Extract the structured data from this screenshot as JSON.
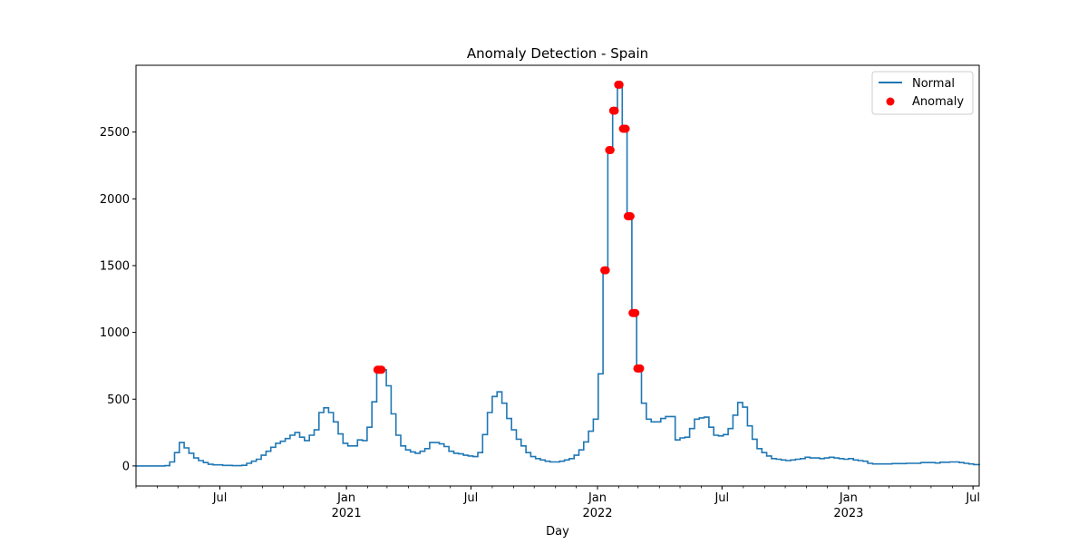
{
  "chart_data": {
    "type": "line",
    "title": "Anomaly Detection - Spain",
    "xlabel": "Day",
    "ylabel": "",
    "xlim": [
      "2020-03-01",
      "2023-07-10"
    ],
    "ylim": [
      -150,
      3000
    ],
    "grid": false,
    "legend_position": "top-right",
    "y_ticks": [
      0,
      500,
      1000,
      1500,
      2000,
      2500
    ],
    "x_ticks": [
      {
        "date": "2020-07-01",
        "label": "Jul",
        "sublabel": ""
      },
      {
        "date": "2021-01-01",
        "label": "Jan",
        "sublabel": "2021"
      },
      {
        "date": "2021-07-01",
        "label": "Jul",
        "sublabel": ""
      },
      {
        "date": "2022-01-01",
        "label": "Jan",
        "sublabel": "2022"
      },
      {
        "date": "2022-07-01",
        "label": "Jul",
        "sublabel": ""
      },
      {
        "date": "2023-01-01",
        "label": "Jan",
        "sublabel": "2023"
      },
      {
        "date": "2023-07-01",
        "label": "Jul",
        "sublabel": ""
      }
    ],
    "series": [
      {
        "name": "Normal",
        "type": "step-line",
        "color": "#1f77b4",
        "points": [
          [
            "2020-03-01",
            0
          ],
          [
            "2020-04-12",
            2
          ],
          [
            "2020-04-19",
            30
          ],
          [
            "2020-04-26",
            100
          ],
          [
            "2020-05-03",
            175
          ],
          [
            "2020-05-10",
            135
          ],
          [
            "2020-05-17",
            95
          ],
          [
            "2020-05-24",
            60
          ],
          [
            "2020-05-31",
            40
          ],
          [
            "2020-06-07",
            25
          ],
          [
            "2020-06-14",
            12
          ],
          [
            "2020-06-21",
            8
          ],
          [
            "2020-07-05",
            4
          ],
          [
            "2020-07-19",
            2
          ],
          [
            "2020-08-02",
            5
          ],
          [
            "2020-08-09",
            20
          ],
          [
            "2020-08-16",
            35
          ],
          [
            "2020-08-23",
            50
          ],
          [
            "2020-08-30",
            80
          ],
          [
            "2020-09-06",
            110
          ],
          [
            "2020-09-13",
            140
          ],
          [
            "2020-09-20",
            170
          ],
          [
            "2020-09-27",
            185
          ],
          [
            "2020-10-04",
            205
          ],
          [
            "2020-10-11",
            230
          ],
          [
            "2020-10-18",
            250
          ],
          [
            "2020-10-25",
            215
          ],
          [
            "2020-11-01",
            190
          ],
          [
            "2020-11-08",
            230
          ],
          [
            "2020-11-15",
            270
          ],
          [
            "2020-11-22",
            400
          ],
          [
            "2020-11-29",
            435
          ],
          [
            "2020-12-06",
            400
          ],
          [
            "2020-12-13",
            330
          ],
          [
            "2020-12-20",
            240
          ],
          [
            "2020-12-27",
            170
          ],
          [
            "2021-01-03",
            150
          ],
          [
            "2021-01-17",
            195
          ],
          [
            "2021-01-24",
            190
          ],
          [
            "2021-01-31",
            290
          ],
          [
            "2021-02-07",
            480
          ],
          [
            "2021-02-14",
            700
          ],
          [
            "2021-02-21",
            720
          ],
          [
            "2021-02-28",
            600
          ],
          [
            "2021-03-07",
            390
          ],
          [
            "2021-03-14",
            230
          ],
          [
            "2021-03-21",
            150
          ],
          [
            "2021-03-28",
            120
          ],
          [
            "2021-04-04",
            105
          ],
          [
            "2021-04-11",
            95
          ],
          [
            "2021-04-18",
            110
          ],
          [
            "2021-04-25",
            130
          ],
          [
            "2021-05-02",
            175
          ],
          [
            "2021-05-16",
            165
          ],
          [
            "2021-05-23",
            145
          ],
          [
            "2021-05-30",
            110
          ],
          [
            "2021-06-06",
            95
          ],
          [
            "2021-06-13",
            90
          ],
          [
            "2021-06-20",
            80
          ],
          [
            "2021-06-27",
            75
          ],
          [
            "2021-07-04",
            70
          ],
          [
            "2021-07-11",
            100
          ],
          [
            "2021-07-18",
            235
          ],
          [
            "2021-07-25",
            400
          ],
          [
            "2021-08-01",
            520
          ],
          [
            "2021-08-08",
            555
          ],
          [
            "2021-08-15",
            470
          ],
          [
            "2021-08-22",
            355
          ],
          [
            "2021-08-29",
            270
          ],
          [
            "2021-09-05",
            200
          ],
          [
            "2021-09-12",
            150
          ],
          [
            "2021-09-19",
            100
          ],
          [
            "2021-09-26",
            70
          ],
          [
            "2021-10-03",
            55
          ],
          [
            "2021-10-10",
            45
          ],
          [
            "2021-10-17",
            35
          ],
          [
            "2021-10-24",
            30
          ],
          [
            "2021-10-31",
            30
          ],
          [
            "2021-11-07",
            35
          ],
          [
            "2021-11-14",
            45
          ],
          [
            "2021-11-21",
            55
          ],
          [
            "2021-11-28",
            80
          ],
          [
            "2021-12-05",
            120
          ],
          [
            "2021-12-12",
            180
          ],
          [
            "2021-12-19",
            260
          ],
          [
            "2021-12-26",
            350
          ],
          [
            "2022-01-02",
            690
          ],
          [
            "2022-01-09",
            1465
          ],
          [
            "2022-01-16",
            2365
          ],
          [
            "2022-01-23",
            2660
          ],
          [
            "2022-01-30",
            2855
          ],
          [
            "2022-02-06",
            2525
          ],
          [
            "2022-02-13",
            1870
          ],
          [
            "2022-02-20",
            1145
          ],
          [
            "2022-02-27",
            730
          ],
          [
            "2022-03-06",
            470
          ],
          [
            "2022-03-13",
            350
          ],
          [
            "2022-03-20",
            330
          ],
          [
            "2022-04-03",
            355
          ],
          [
            "2022-04-10",
            370
          ],
          [
            "2022-04-24",
            195
          ],
          [
            "2022-05-01",
            210
          ],
          [
            "2022-05-08",
            215
          ],
          [
            "2022-05-15",
            280
          ],
          [
            "2022-05-22",
            350
          ],
          [
            "2022-05-29",
            360
          ],
          [
            "2022-06-05",
            365
          ],
          [
            "2022-06-12",
            290
          ],
          [
            "2022-06-19",
            230
          ],
          [
            "2022-06-26",
            225
          ],
          [
            "2022-07-03",
            235
          ],
          [
            "2022-07-10",
            280
          ],
          [
            "2022-07-17",
            380
          ],
          [
            "2022-07-24",
            475
          ],
          [
            "2022-07-31",
            440
          ],
          [
            "2022-08-07",
            300
          ],
          [
            "2022-08-14",
            200
          ],
          [
            "2022-08-21",
            130
          ],
          [
            "2022-08-28",
            100
          ],
          [
            "2022-09-04",
            75
          ],
          [
            "2022-09-11",
            55
          ],
          [
            "2022-09-18",
            50
          ],
          [
            "2022-09-25",
            45
          ],
          [
            "2022-10-02",
            40
          ],
          [
            "2022-10-09",
            45
          ],
          [
            "2022-10-16",
            50
          ],
          [
            "2022-10-23",
            55
          ],
          [
            "2022-10-30",
            65
          ],
          [
            "2022-11-06",
            60
          ],
          [
            "2022-11-20",
            55
          ],
          [
            "2022-11-27",
            60
          ],
          [
            "2022-12-04",
            65
          ],
          [
            "2022-12-11",
            60
          ],
          [
            "2022-12-18",
            55
          ],
          [
            "2022-12-25",
            50
          ],
          [
            "2023-01-01",
            55
          ],
          [
            "2023-01-08",
            45
          ],
          [
            "2023-01-15",
            40
          ],
          [
            "2023-01-22",
            35
          ],
          [
            "2023-01-29",
            20
          ],
          [
            "2023-02-05",
            15
          ],
          [
            "2023-03-05",
            18
          ],
          [
            "2023-03-26",
            20
          ],
          [
            "2023-04-16",
            25
          ],
          [
            "2023-05-07",
            22
          ],
          [
            "2023-05-14",
            28
          ],
          [
            "2023-05-28",
            30
          ],
          [
            "2023-06-11",
            25
          ],
          [
            "2023-06-18",
            20
          ],
          [
            "2023-06-25",
            15
          ],
          [
            "2023-07-02",
            10
          ],
          [
            "2023-07-10",
            5
          ]
        ]
      },
      {
        "name": "Anomaly",
        "type": "scatter",
        "color": "#ff0000",
        "points": [
          [
            "2021-02-15",
            720
          ],
          [
            "2021-02-17",
            720
          ],
          [
            "2021-02-19",
            720
          ],
          [
            "2021-02-21",
            720
          ],
          [
            "2022-01-11",
            1465
          ],
          [
            "2022-01-13",
            1465
          ],
          [
            "2022-01-18",
            2365
          ],
          [
            "2022-01-20",
            2365
          ],
          [
            "2022-01-24",
            2660
          ],
          [
            "2022-01-26",
            2660
          ],
          [
            "2022-01-31",
            2855
          ],
          [
            "2022-02-02",
            2855
          ],
          [
            "2022-02-07",
            2525
          ],
          [
            "2022-02-09",
            2525
          ],
          [
            "2022-02-11",
            2525
          ],
          [
            "2022-02-14",
            1870
          ],
          [
            "2022-02-16",
            1870
          ],
          [
            "2022-02-18",
            1870
          ],
          [
            "2022-02-21",
            1145
          ],
          [
            "2022-02-23",
            1145
          ],
          [
            "2022-02-25",
            1145
          ],
          [
            "2022-02-28",
            730
          ],
          [
            "2022-03-02",
            730
          ],
          [
            "2022-03-04",
            730
          ]
        ]
      }
    ]
  }
}
